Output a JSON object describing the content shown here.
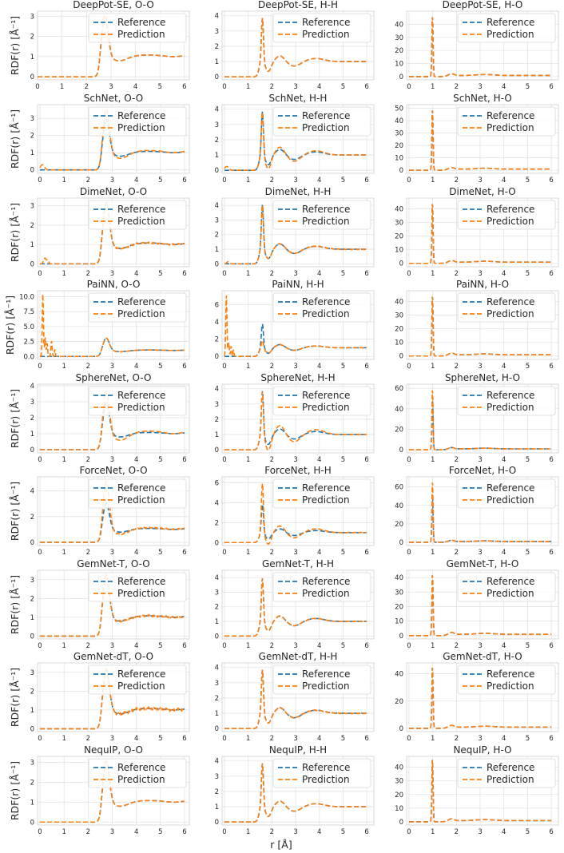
{
  "figure": {
    "x_label": "r [Å]",
    "y_label": "RDF(r) [Å⁻¹]",
    "legend": [
      "Reference",
      "Prediction"
    ],
    "colors": {
      "reference": "#1f77b4",
      "prediction": "#ff7f0e",
      "grid": "#e3e3e3",
      "frame": "#d0d0d0"
    }
  },
  "chart_data": [
    {
      "type": "line",
      "title": "DeepPot-SE, O-O",
      "pair": "O-O",
      "xlim": [
        0,
        6.2
      ],
      "ylim": [
        -0.15,
        3.25
      ],
      "xticks": [
        0,
        1,
        2,
        3,
        4,
        5,
        6
      ],
      "yticks": [
        0,
        1,
        2,
        3
      ],
      "params": {
        "p1": 3.1,
        "r1": 2.75,
        "w1": 0.13,
        "m1": 0.8,
        "p2": 1.08,
        "r2": 4.5
      },
      "pred": {
        "amp1": 1.0,
        "dev": 1.0,
        "noise": 0,
        "spikes": []
      },
      "series": [
        {
          "name": "Reference"
        },
        {
          "name": "Prediction"
        }
      ]
    },
    {
      "type": "line",
      "title": "DeepPot-SE, H-H",
      "pair": "H-H",
      "xlim": [
        -0.1,
        6.3
      ],
      "ylim": [
        -0.2,
        4.3
      ],
      "xticks": [
        0,
        1,
        2,
        3,
        4,
        5,
        6
      ],
      "yticks": [
        0,
        1,
        2,
        3,
        4
      ],
      "params": {
        "p1": 4.0
      },
      "pred": {
        "amp1": 1.0,
        "dev": 1.0,
        "noise": 0,
        "spikes": []
      },
      "series": [
        {
          "name": "Reference"
        },
        {
          "name": "Prediction"
        }
      ]
    },
    {
      "type": "line",
      "title": "DeepPot-SE, H-O",
      "pair": "H-O",
      "xlim": [
        -0.1,
        6.3
      ],
      "ylim": [
        -2.5,
        50
      ],
      "xticks": [
        0,
        1,
        2,
        3,
        4,
        5,
        6
      ],
      "yticks": [
        0,
        10,
        20,
        30,
        40
      ],
      "params": {
        "p1": 47
      },
      "pred": {
        "amp1": 1.0,
        "dev": 1.0,
        "noise": 0,
        "spikes": []
      },
      "series": [
        {
          "name": "Reference"
        },
        {
          "name": "Prediction"
        }
      ]
    },
    {
      "type": "line",
      "title": "SchNet, O-O",
      "pair": "O-O",
      "xlim": [
        -0.1,
        6.2
      ],
      "ylim": [
        -0.2,
        3.8
      ],
      "xticks": [
        0,
        1,
        2,
        3,
        4,
        5,
        6
      ],
      "yticks": [
        0,
        1,
        2,
        3
      ],
      "params": {
        "p1": 3.0,
        "r1": 2.75,
        "w1": 0.13,
        "m1": 0.8,
        "p2": 1.08,
        "r2": 4.5
      },
      "pred": {
        "amp1": 1.2,
        "dev": 1.6,
        "noise": 0,
        "spikes": [
          [
            0.1,
            0.3,
            0.08
          ]
        ]
      },
      "series": [
        {
          "name": "Reference"
        },
        {
          "name": "Prediction"
        }
      ]
    },
    {
      "type": "line",
      "title": "SchNet, H-H",
      "pair": "H-H",
      "xlim": [
        -0.1,
        6.3
      ],
      "ylim": [
        -0.2,
        4.3
      ],
      "xticks": [
        0,
        1,
        2,
        3,
        4,
        5,
        6
      ],
      "yticks": [
        0,
        1,
        2,
        3,
        4
      ],
      "params": {
        "p1": 4.0
      },
      "pred": {
        "amp1": 1.0,
        "dev": 1.4,
        "noise": 0,
        "spikes": [
          [
            0.1,
            0.25,
            0.08
          ]
        ]
      },
      "series": [
        {
          "name": "Reference"
        },
        {
          "name": "Prediction"
        }
      ]
    },
    {
      "type": "line",
      "title": "SchNet, H-O",
      "pair": "H-O",
      "xlim": [
        -0.1,
        6.3
      ],
      "ylim": [
        -2.5,
        53
      ],
      "xticks": [
        0,
        1,
        2,
        3,
        4,
        5,
        6
      ],
      "yticks": [
        0,
        10,
        20,
        30,
        40,
        50
      ],
      "params": {
        "p1": 50
      },
      "pred": {
        "amp1": 1.0,
        "dev": 1.0,
        "noise": 0,
        "spikes": []
      },
      "series": [
        {
          "name": "Reference"
        },
        {
          "name": "Prediction"
        }
      ]
    },
    {
      "type": "line",
      "title": "DimeNet, O-O",
      "pair": "O-O",
      "xlim": [
        -0.1,
        6.2
      ],
      "ylim": [
        -0.15,
        3.4
      ],
      "xticks": [
        0,
        1,
        2,
        3,
        4,
        5,
        6
      ],
      "yticks": [
        0,
        1,
        2,
        3
      ],
      "params": {
        "p1": 3.2,
        "r1": 2.75,
        "w1": 0.13,
        "m1": 0.8,
        "p2": 1.08,
        "r2": 4.5
      },
      "pred": {
        "amp1": 1.0,
        "dev": 1.0,
        "noise": 0.04,
        "spikes": [
          [
            0.2,
            0.3,
            0.05
          ],
          [
            0.32,
            0.2,
            0.04
          ]
        ]
      },
      "series": [
        {
          "name": "Reference"
        },
        {
          "name": "Prediction"
        }
      ]
    },
    {
      "type": "line",
      "title": "DimeNet, H-H",
      "pair": "H-H",
      "xlim": [
        -0.1,
        6.3
      ],
      "ylim": [
        -0.2,
        4.5
      ],
      "xticks": [
        0,
        1,
        2,
        3,
        4,
        5,
        6
      ],
      "yticks": [
        0,
        1,
        2,
        3,
        4
      ],
      "params": {
        "p1": 4.2
      },
      "pred": {
        "amp1": 1.0,
        "dev": 1.0,
        "noise": 0.03,
        "spikes": [
          [
            0.15,
            0.15,
            0.05
          ]
        ]
      },
      "series": [
        {
          "name": "Reference"
        },
        {
          "name": "Prediction"
        }
      ]
    },
    {
      "type": "line",
      "title": "DimeNet, H-O",
      "pair": "H-O",
      "xlim": [
        -0.1,
        6.3
      ],
      "ylim": [
        -2.5,
        48
      ],
      "xticks": [
        0,
        1,
        2,
        3,
        4,
        5,
        6
      ],
      "yticks": [
        0,
        10,
        20,
        30,
        40
      ],
      "params": {
        "p1": 45
      },
      "pred": {
        "amp1": 1.0,
        "dev": 1.0,
        "noise": 0,
        "spikes": []
      },
      "series": [
        {
          "name": "Reference"
        },
        {
          "name": "Prediction"
        }
      ]
    },
    {
      "type": "line",
      "title": "PaiNN, O-O",
      "pair": "O-O",
      "xlim": [
        -0.1,
        6.2
      ],
      "ylim": [
        -0.5,
        11
      ],
      "xticks": [
        0,
        1,
        2,
        3,
        4,
        5,
        6
      ],
      "yticks": [
        0.0,
        2.5,
        5.0,
        7.5,
        10.0
      ],
      "params": {
        "p1": 3.1,
        "r1": 2.75,
        "w1": 0.13,
        "m1": 0.8,
        "p2": 1.08,
        "r2": 4.5
      },
      "pred": {
        "amp1": 1.0,
        "dev": 1.0,
        "noise": 0.03,
        "spikes": [
          [
            0.12,
            10.5,
            0.025
          ],
          [
            0.22,
            3.2,
            0.025
          ],
          [
            0.3,
            2.2,
            0.02
          ],
          [
            0.48,
            2.6,
            0.025
          ],
          [
            0.62,
            1.2,
            0.02
          ]
        ]
      },
      "series": [
        {
          "name": "Reference"
        },
        {
          "name": "Prediction"
        }
      ]
    },
    {
      "type": "line",
      "title": "PaiNN, H-H",
      "pair": "H-H",
      "xlim": [
        -0.1,
        6.3
      ],
      "ylim": [
        -0.35,
        7.6
      ],
      "xticks": [
        0,
        1,
        2,
        3,
        4,
        5,
        6
      ],
      "yticks": [
        0,
        2,
        4,
        6
      ],
      "params": {
        "p1": 3.9
      },
      "pred": {
        "amp1": 0.5,
        "dev": 1.0,
        "noise": 0.03,
        "spikes": [
          [
            0.08,
            7.1,
            0.025
          ],
          [
            0.18,
            1.6,
            0.025
          ],
          [
            0.28,
            1.2,
            0.02
          ],
          [
            0.38,
            0.8,
            0.02
          ]
        ]
      },
      "series": [
        {
          "name": "Reference"
        },
        {
          "name": "Prediction"
        }
      ]
    },
    {
      "type": "line",
      "title": "PaiNN, H-O",
      "pair": "H-O",
      "xlim": [
        -0.1,
        6.3
      ],
      "ylim": [
        -2.5,
        48
      ],
      "xticks": [
        0,
        1,
        2,
        3,
        4,
        5,
        6
      ],
      "yticks": [
        0,
        10,
        20,
        30,
        40
      ],
      "params": {
        "p1": 45
      },
      "pred": {
        "amp1": 1.0,
        "dev": 1.0,
        "noise": 0,
        "spikes": []
      },
      "series": [
        {
          "name": "Reference"
        },
        {
          "name": "Prediction"
        }
      ]
    },
    {
      "type": "line",
      "title": "SphereNet, O-O",
      "pair": "O-O",
      "xlim": [
        -0.1,
        6.2
      ],
      "ylim": [
        -0.2,
        4.1
      ],
      "xticks": [
        0,
        1,
        2,
        3,
        4,
        5,
        6
      ],
      "yticks": [
        0,
        1,
        2,
        3,
        4
      ],
      "params": {
        "p1": 3.0,
        "r1": 2.75,
        "w1": 0.13,
        "m1": 0.8,
        "p2": 1.08,
        "r2": 4.5
      },
      "pred": {
        "amp1": 1.25,
        "dev": 2.0,
        "noise": 0,
        "spikes": []
      },
      "series": [
        {
          "name": "Reference"
        },
        {
          "name": "Prediction"
        }
      ]
    },
    {
      "type": "line",
      "title": "SphereNet, H-H",
      "pair": "H-H",
      "xlim": [
        -0.1,
        6.3
      ],
      "ylim": [
        -0.2,
        4.3
      ],
      "xticks": [
        0,
        1,
        2,
        3,
        4,
        5,
        6
      ],
      "yticks": [
        0,
        1,
        2,
        3,
        4
      ],
      "params": {
        "p1": 4.0
      },
      "pred": {
        "amp1": 1.0,
        "dev": 1.6,
        "noise": 0,
        "spikes": []
      },
      "series": [
        {
          "name": "Reference"
        },
        {
          "name": "Prediction"
        }
      ]
    },
    {
      "type": "line",
      "title": "SphereNet, H-O",
      "pair": "H-O",
      "xlim": [
        -0.1,
        6.3
      ],
      "ylim": [
        -3,
        64
      ],
      "xticks": [
        0,
        1,
        2,
        3,
        4,
        5,
        6
      ],
      "yticks": [
        0,
        20,
        40,
        60
      ],
      "params": {
        "p1": 50
      },
      "pred": {
        "amp1": 1.2,
        "dev": 1.0,
        "noise": 0,
        "spikes": []
      },
      "series": [
        {
          "name": "Reference"
        },
        {
          "name": "Prediction"
        }
      ]
    },
    {
      "type": "line",
      "title": "ForceNet, O-O",
      "pair": "O-O",
      "xlim": [
        -0.1,
        6.2
      ],
      "ylim": [
        -0.25,
        5.1
      ],
      "xticks": [
        0,
        1,
        2,
        3,
        4,
        5,
        6
      ],
      "yticks": [
        0,
        2,
        4
      ],
      "params": {
        "p1": 3.1,
        "r1": 2.75,
        "w1": 0.13,
        "m1": 0.8,
        "p2": 1.08,
        "r2": 4.5
      },
      "pred": {
        "amp1": 1.55,
        "dev": 1.8,
        "noise": 0.05,
        "spikes": []
      },
      "series": [
        {
          "name": "Reference"
        },
        {
          "name": "Prediction"
        }
      ]
    },
    {
      "type": "line",
      "title": "ForceNet, H-H",
      "pair": "H-H",
      "xlim": [
        -0.1,
        6.3
      ],
      "ylim": [
        -0.3,
        6.6
      ],
      "xticks": [
        0,
        1,
        2,
        3,
        4,
        5,
        6
      ],
      "yticks": [
        0,
        2,
        4,
        6
      ],
      "params": {
        "p1": 4.0
      },
      "pred": {
        "amp1": 1.55,
        "dev": 1.8,
        "noise": 0.03,
        "spikes": []
      },
      "series": [
        {
          "name": "Reference"
        },
        {
          "name": "Prediction"
        }
      ]
    },
    {
      "type": "line",
      "title": "ForceNet, H-O",
      "pair": "H-O",
      "xlim": [
        -0.1,
        6.3
      ],
      "ylim": [
        -3.5,
        71
      ],
      "xticks": [
        0,
        1,
        2,
        3,
        4,
        5,
        6
      ],
      "yticks": [
        0,
        20,
        40,
        60
      ],
      "params": {
        "p1": 50
      },
      "pred": {
        "amp1": 1.34,
        "dev": 1.0,
        "noise": 0,
        "spikes": []
      },
      "series": [
        {
          "name": "Reference"
        },
        {
          "name": "Prediction"
        }
      ]
    },
    {
      "type": "line",
      "title": "GemNet-T, O-O",
      "pair": "O-O",
      "xlim": [
        -0.1,
        6.2
      ],
      "ylim": [
        -0.15,
        3.5
      ],
      "xticks": [
        0,
        1,
        2,
        3,
        4,
        5,
        6
      ],
      "yticks": [
        0,
        1,
        2,
        3
      ],
      "params": {
        "p1": 3.3,
        "r1": 2.75,
        "w1": 0.13,
        "m1": 0.8,
        "p2": 1.08,
        "r2": 4.5
      },
      "pred": {
        "amp1": 1.0,
        "dev": 1.0,
        "noise": 0.05,
        "spikes": []
      },
      "series": [
        {
          "name": "Reference"
        },
        {
          "name": "Prediction"
        }
      ]
    },
    {
      "type": "line",
      "title": "GemNet-T, H-H",
      "pair": "H-H",
      "xlim": [
        -0.1,
        6.3
      ],
      "ylim": [
        -0.2,
        4.5
      ],
      "xticks": [
        0,
        1,
        2,
        3,
        4,
        5,
        6
      ],
      "yticks": [
        0,
        1,
        2,
        3,
        4
      ],
      "params": {
        "p1": 4.1
      },
      "pred": {
        "amp1": 1.0,
        "dev": 1.0,
        "noise": 0.02,
        "spikes": []
      },
      "series": [
        {
          "name": "Reference"
        },
        {
          "name": "Prediction"
        }
      ]
    },
    {
      "type": "line",
      "title": "GemNet-T, H-O",
      "pair": "H-O",
      "xlim": [
        -0.1,
        6.3
      ],
      "ylim": [
        -2.3,
        45
      ],
      "xticks": [
        0,
        1,
        2,
        3,
        4,
        5,
        6
      ],
      "yticks": [
        0,
        10,
        20,
        30,
        40
      ],
      "params": {
        "p1": 43
      },
      "pred": {
        "amp1": 1.0,
        "dev": 1.0,
        "noise": 0,
        "spikes": []
      },
      "series": [
        {
          "name": "Reference"
        },
        {
          "name": "Prediction"
        }
      ]
    },
    {
      "type": "line",
      "title": "GemNet-dT, O-O",
      "pair": "O-O",
      "xlim": [
        -0.1,
        6.2
      ],
      "ylim": [
        -0.15,
        3.5
      ],
      "xticks": [
        0,
        1,
        2,
        3,
        4,
        5,
        6
      ],
      "yticks": [
        0,
        1,
        2,
        3
      ],
      "params": {
        "p1": 3.2,
        "r1": 2.75,
        "w1": 0.13,
        "m1": 0.8,
        "p2": 1.08,
        "r2": 4.5
      },
      "pred": {
        "amp1": 1.0,
        "dev": 1.0,
        "noise": 0.07,
        "spikes": []
      },
      "series": [
        {
          "name": "Reference"
        },
        {
          "name": "Prediction"
        }
      ]
    },
    {
      "type": "line",
      "title": "GemNet-dT, H-H",
      "pair": "H-H",
      "xlim": [
        -0.1,
        6.3
      ],
      "ylim": [
        -0.2,
        4.3
      ],
      "xticks": [
        0,
        1,
        2,
        3,
        4,
        5,
        6
      ],
      "yticks": [
        0,
        1,
        2,
        3,
        4
      ],
      "params": {
        "p1": 4.0
      },
      "pred": {
        "amp1": 1.0,
        "dev": 1.0,
        "noise": 0.03,
        "spikes": []
      },
      "series": [
        {
          "name": "Reference"
        },
        {
          "name": "Prediction"
        }
      ]
    },
    {
      "type": "line",
      "title": "GemNet-dT, H-O",
      "pair": "H-O",
      "xlim": [
        -0.1,
        6.3
      ],
      "ylim": [
        -2.4,
        48
      ],
      "xticks": [
        0,
        1,
        2,
        3,
        4,
        5,
        6
      ],
      "yticks": [
        0,
        20,
        40
      ],
      "params": {
        "p1": 46
      },
      "pred": {
        "amp1": 1.0,
        "dev": 1.0,
        "noise": 0,
        "spikes": []
      },
      "series": [
        {
          "name": "Reference"
        },
        {
          "name": "Prediction"
        }
      ]
    },
    {
      "type": "line",
      "title": "NequIP, O-O",
      "pair": "O-O",
      "xlim": [
        -0.1,
        6.2
      ],
      "ylim": [
        -0.15,
        3.3
      ],
      "xticks": [
        0,
        1,
        2,
        3,
        4,
        5,
        6
      ],
      "yticks": [
        0,
        1,
        2,
        3
      ],
      "params": {
        "p1": 3.1,
        "r1": 2.75,
        "w1": 0.13,
        "m1": 0.8,
        "p2": 1.08,
        "r2": 4.5
      },
      "pred": {
        "amp1": 1.0,
        "dev": 1.0,
        "noise": 0,
        "spikes": []
      },
      "series": [
        {
          "name": "Reference"
        },
        {
          "name": "Prediction"
        }
      ]
    },
    {
      "type": "line",
      "title": "NequIP, H-H",
      "pair": "H-H",
      "xlim": [
        -0.1,
        6.3
      ],
      "ylim": [
        -0.2,
        4.3
      ],
      "xticks": [
        0,
        1,
        2,
        3,
        4,
        5,
        6
      ],
      "yticks": [
        0,
        1,
        2,
        3,
        4
      ],
      "params": {
        "p1": 4.0
      },
      "pred": {
        "amp1": 1.0,
        "dev": 1.0,
        "noise": 0,
        "spikes": []
      },
      "series": [
        {
          "name": "Reference"
        },
        {
          "name": "Prediction"
        }
      ]
    },
    {
      "type": "line",
      "title": "NequIP, H-O",
      "pair": "H-O",
      "xlim": [
        -0.1,
        6.3
      ],
      "ylim": [
        -2.4,
        48
      ],
      "xticks": [
        0,
        1,
        2,
        3,
        4,
        5,
        6
      ],
      "yticks": [
        0,
        10,
        20,
        30,
        40
      ],
      "params": {
        "p1": 47
      },
      "pred": {
        "amp1": 1.0,
        "dev": 1.0,
        "noise": 0,
        "spikes": []
      },
      "series": [
        {
          "name": "Reference"
        },
        {
          "name": "Prediction"
        }
      ]
    }
  ]
}
